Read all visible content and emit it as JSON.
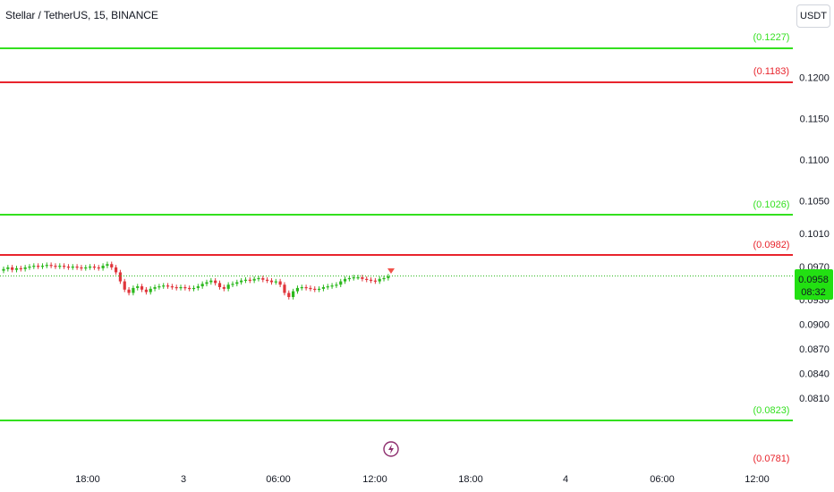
{
  "header": {
    "symbol_title": "Stellar / TetherUS, 15, BINANCE",
    "currency_button": "USDT"
  },
  "icons": {
    "flash": "lightning-circle-icon"
  },
  "colors": {
    "green_line": "#33e01f",
    "red_line": "#e8242c",
    "candle_up": "#26a69a",
    "candle_up_body": "#2bb81d",
    "candle_down": "#e0353b",
    "price_badge": "#22e012",
    "grid_text": "#131722"
  },
  "chart_data": {
    "type": "candlestick",
    "title": "Stellar / TetherUS, 15, BINANCE",
    "y_axis": {
      "range": [
        0.0797,
        0.124
      ],
      "ticks": [
        "0.1200",
        "0.1150",
        "0.1100",
        "0.1050",
        "0.1010",
        "0.0970",
        "0.0930",
        "0.0900",
        "0.0870",
        "0.0840",
        "0.0810"
      ]
    },
    "x_axis": {
      "ticks": [
        "18:00",
        "3",
        "06:00",
        "12:00",
        "18:00",
        "4",
        "06:00",
        "12:00"
      ]
    },
    "horizontal_levels": [
      {
        "label": "(0.1227)",
        "value": 0.1227,
        "color": "green"
      },
      {
        "label": "(0.1183)",
        "value": 0.1183,
        "color": "red"
      },
      {
        "label": "(0.1026)",
        "value": 0.1026,
        "color": "green"
      },
      {
        "label": "(0.0982)",
        "value": 0.0982,
        "color": "red"
      },
      {
        "label": "(0.0823)",
        "value": 0.0823,
        "color": "green"
      },
      {
        "label": "(0.0781)",
        "value": 0.0781,
        "color": "red"
      }
    ],
    "current_price": {
      "value": "0.0958",
      "countdown": "08:32"
    },
    "closes": [
      0.0967,
      0.0969,
      0.0966,
      0.0968,
      0.0967,
      0.0969,
      0.097,
      0.0971,
      0.097,
      0.0971,
      0.0972,
      0.0971,
      0.097,
      0.0971,
      0.097,
      0.0969,
      0.097,
      0.0969,
      0.0968,
      0.0969,
      0.097,
      0.0969,
      0.0968,
      0.0971,
      0.0973,
      0.0969,
      0.0963,
      0.0952,
      0.0942,
      0.0938,
      0.0944,
      0.0946,
      0.0942,
      0.0939,
      0.0943,
      0.0945,
      0.0946,
      0.0947,
      0.0946,
      0.0945,
      0.0944,
      0.0945,
      0.0944,
      0.0943,
      0.0944,
      0.0946,
      0.0949,
      0.0951,
      0.0953,
      0.095,
      0.0945,
      0.0943,
      0.0948,
      0.0949,
      0.0951,
      0.0953,
      0.0954,
      0.0953,
      0.0955,
      0.0956,
      0.0954,
      0.0953,
      0.0951,
      0.0952,
      0.0948,
      0.0938,
      0.0933,
      0.094,
      0.0944,
      0.0945,
      0.0944,
      0.0943,
      0.0942,
      0.0943,
      0.0945,
      0.0946,
      0.0947,
      0.0948,
      0.0952,
      0.0955,
      0.0956,
      0.0957,
      0.0957,
      0.0955,
      0.0954,
      0.0953,
      0.0952,
      0.0955,
      0.0956,
      0.0958
    ]
  }
}
